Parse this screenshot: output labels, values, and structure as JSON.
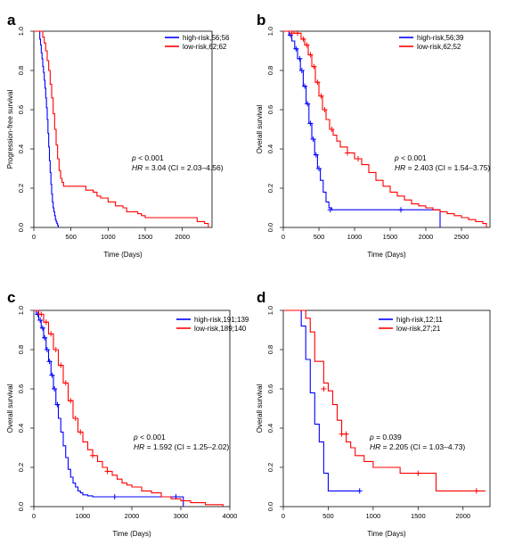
{
  "chart_data": [
    {
      "type": "line",
      "panel": "a",
      "xlabel": "Time (Days)",
      "ylabel": "Progression-free survival",
      "xlim": [
        0,
        2400
      ],
      "ylim": [
        0,
        1
      ],
      "xticks": [
        "0",
        "500",
        "1000",
        "1500",
        "2000"
      ],
      "yticks": [
        "0.0",
        "0.2",
        "0.4",
        "0.6",
        "0.8",
        "1.0"
      ],
      "grid": false,
      "legend_position": "top-right",
      "colors": {
        "high": "#0000ff",
        "low": "#ff0000"
      },
      "annotation": {
        "p_label": "p",
        "p_text": " < 0.001",
        "hr_label": "HR",
        "hr_text": " = 3.04  (CI = 2.03–4.56)"
      },
      "series": [
        {
          "name": "high-risk,56;56",
          "color": "#0000ff",
          "x": [
            0,
            70,
            80,
            90,
            100,
            110,
            120,
            130,
            140,
            150,
            160,
            170,
            180,
            190,
            200,
            210,
            220,
            230,
            240,
            250,
            260,
            270,
            280,
            290,
            300,
            310,
            320,
            330
          ],
          "y": [
            1,
            1,
            0.96,
            0.93,
            0.89,
            0.86,
            0.82,
            0.79,
            0.75,
            0.71,
            0.66,
            0.61,
            0.55,
            0.48,
            0.41,
            0.34,
            0.28,
            0.22,
            0.17,
            0.13,
            0.1,
            0.08,
            0.06,
            0.04,
            0.03,
            0.02,
            0.01,
            0.0
          ],
          "censored": []
        },
        {
          "name": "low-risk,62;62",
          "color": "#ff0000",
          "x": [
            0,
            110,
            120,
            140,
            160,
            180,
            200,
            220,
            240,
            260,
            280,
            300,
            320,
            340,
            360,
            380,
            400,
            650,
            700,
            800,
            850,
            900,
            1000,
            1100,
            1200,
            1250,
            1400,
            1450,
            1500,
            1700,
            2200,
            2300,
            2350
          ],
          "y": [
            1,
            1,
            0.97,
            0.94,
            0.9,
            0.85,
            0.8,
            0.73,
            0.66,
            0.58,
            0.5,
            0.42,
            0.35,
            0.29,
            0.25,
            0.23,
            0.21,
            0.21,
            0.19,
            0.18,
            0.16,
            0.15,
            0.13,
            0.11,
            0.1,
            0.08,
            0.07,
            0.06,
            0.05,
            0.05,
            0.03,
            0.02,
            0.0
          ],
          "censored": []
        }
      ]
    },
    {
      "type": "line",
      "panel": "b",
      "xlabel": "Time (Days)",
      "ylabel": "Overall survival",
      "xlim": [
        0,
        2900
      ],
      "ylim": [
        0,
        1
      ],
      "xticks": [
        "0",
        "500",
        "1000",
        "1500",
        "2000",
        "2500"
      ],
      "yticks": [
        "0.0",
        "0.2",
        "0.4",
        "0.6",
        "0.8",
        "1.0"
      ],
      "grid": false,
      "legend_position": "top-right",
      "colors": {
        "high": "#0000ff",
        "low": "#ff0000"
      },
      "annotation": {
        "p_label": "p",
        "p_text": " < 0.001",
        "hr_label": "HR",
        "hr_text": " = 2.403  (CI = 1.54–3.75)"
      },
      "series": [
        {
          "name": "high-risk,56;39",
          "color": "#0000ff",
          "x": [
            0,
            80,
            120,
            160,
            200,
            240,
            280,
            320,
            360,
            400,
            440,
            480,
            520,
            560,
            600,
            640,
            680,
            2200,
            2200
          ],
          "y": [
            1,
            0.98,
            0.95,
            0.91,
            0.86,
            0.8,
            0.72,
            0.63,
            0.53,
            0.45,
            0.37,
            0.3,
            0.24,
            0.18,
            0.13,
            0.1,
            0.09,
            0.09,
            0.0
          ],
          "censored": [
            [
              100,
              0.98
            ],
            [
              180,
              0.91
            ],
            [
              230,
              0.86
            ],
            [
              260,
              0.8
            ],
            [
              300,
              0.72
            ],
            [
              340,
              0.63
            ],
            [
              380,
              0.53
            ],
            [
              420,
              0.45
            ],
            [
              460,
              0.37
            ],
            [
              500,
              0.3
            ],
            [
              660,
              0.09
            ],
            [
              1650,
              0.09
            ]
          ]
        },
        {
          "name": "low-risk,62;52",
          "color": "#ff0000",
          "x": [
            0,
            150,
            250,
            300,
            350,
            400,
            450,
            500,
            550,
            600,
            650,
            700,
            750,
            800,
            900,
            1000,
            1100,
            1200,
            1300,
            1400,
            1500,
            1600,
            1700,
            1800,
            1900,
            2000,
            2100,
            2200,
            2300,
            2400,
            2500,
            2600,
            2700,
            2800,
            2850
          ],
          "y": [
            1,
            0.99,
            0.96,
            0.93,
            0.88,
            0.82,
            0.74,
            0.67,
            0.6,
            0.55,
            0.5,
            0.47,
            0.44,
            0.41,
            0.38,
            0.35,
            0.32,
            0.28,
            0.24,
            0.21,
            0.18,
            0.16,
            0.14,
            0.12,
            0.11,
            0.1,
            0.09,
            0.08,
            0.07,
            0.06,
            0.05,
            0.04,
            0.03,
            0.02,
            0.0
          ],
          "censored": [
            [
              120,
              0.99
            ],
            [
              200,
              0.99
            ],
            [
              280,
              0.96
            ],
            [
              330,
              0.93
            ],
            [
              380,
              0.88
            ],
            [
              430,
              0.82
            ],
            [
              480,
              0.74
            ],
            [
              530,
              0.67
            ],
            [
              580,
              0.6
            ],
            [
              680,
              0.5
            ],
            [
              900,
              0.38
            ],
            [
              1050,
              0.35
            ]
          ]
        }
      ]
    },
    {
      "type": "line",
      "panel": "c",
      "xlabel": "Time (Days)",
      "ylabel": "Overall survival",
      "xlim": [
        0,
        4000
      ],
      "ylim": [
        0,
        1
      ],
      "xticks": [
        "0",
        "1000",
        "2000",
        "3000",
        "4000"
      ],
      "yticks": [
        "0.0",
        "0.2",
        "0.4",
        "0.6",
        "0.8",
        "1.0"
      ],
      "grid": false,
      "legend_position": "top-right",
      "colors": {
        "high": "#0000ff",
        "low": "#ff0000"
      },
      "annotation": {
        "p_label": "p",
        "p_text": " < 0.001",
        "hr_label": "HR",
        "hr_text": " = 1.592  (CI = 1.25–2.02)"
      },
      "series": [
        {
          "name": "high-risk,191;139",
          "color": "#0000ff",
          "x": [
            0,
            50,
            100,
            150,
            200,
            250,
            300,
            350,
            400,
            450,
            500,
            550,
            600,
            650,
            700,
            750,
            800,
            850,
            900,
            950,
            1000,
            1100,
            1200,
            1300,
            1500,
            2000,
            2500,
            3000,
            3050
          ],
          "y": [
            1,
            0.98,
            0.95,
            0.91,
            0.86,
            0.8,
            0.74,
            0.67,
            0.6,
            0.52,
            0.45,
            0.38,
            0.31,
            0.25,
            0.19,
            0.15,
            0.12,
            0.1,
            0.08,
            0.07,
            0.06,
            0.055,
            0.05,
            0.05,
            0.05,
            0.05,
            0.05,
            0.05,
            0.0
          ],
          "censored": [
            [
              80,
              0.98
            ],
            [
              130,
              0.95
            ],
            [
              180,
              0.91
            ],
            [
              220,
              0.86
            ],
            [
              270,
              0.8
            ],
            [
              320,
              0.74
            ],
            [
              370,
              0.67
            ],
            [
              420,
              0.6
            ],
            [
              480,
              0.52
            ],
            [
              1650,
              0.05
            ],
            [
              2900,
              0.05
            ]
          ]
        },
        {
          "name": "low-risk,189;140",
          "color": "#ff0000",
          "x": [
            0,
            100,
            200,
            300,
            400,
            500,
            600,
            700,
            800,
            900,
            1000,
            1100,
            1200,
            1300,
            1400,
            1500,
            1600,
            1700,
            1800,
            1900,
            2000,
            2200,
            2400,
            2600,
            2800,
            3000,
            3200,
            3500,
            3850,
            3860
          ],
          "y": [
            1,
            0.98,
            0.94,
            0.88,
            0.8,
            0.72,
            0.63,
            0.54,
            0.45,
            0.38,
            0.33,
            0.29,
            0.26,
            0.23,
            0.2,
            0.18,
            0.16,
            0.14,
            0.12,
            0.11,
            0.1,
            0.08,
            0.07,
            0.05,
            0.04,
            0.03,
            0.02,
            0.01,
            0.01,
            0.0
          ],
          "censored": [
            [
              150,
              0.98
            ],
            [
              250,
              0.94
            ],
            [
              350,
              0.88
            ],
            [
              450,
              0.8
            ],
            [
              550,
              0.72
            ],
            [
              650,
              0.63
            ],
            [
              750,
              0.54
            ],
            [
              850,
              0.45
            ],
            [
              950,
              0.38
            ],
            [
              1200,
              0.26
            ],
            [
              1500,
              0.18
            ]
          ]
        }
      ]
    },
    {
      "type": "line",
      "panel": "d",
      "xlabel": "Time (Days)",
      "ylabel": "Overall survival",
      "xlim": [
        0,
        2300
      ],
      "ylim": [
        0,
        1
      ],
      "xticks": [
        "0",
        "500",
        "1000",
        "1500",
        "2000"
      ],
      "yticks": [
        "0.0",
        "0.2",
        "0.4",
        "0.6",
        "0.8",
        "1.0"
      ],
      "grid": false,
      "legend_position": "top-right",
      "colors": {
        "high": "#0000ff",
        "low": "#ff0000"
      },
      "annotation": {
        "p_label": "p",
        "p_text": " = 0.039",
        "hr_label": "HR",
        "hr_text": " = 2.205  (CI = 1.03–4.73)"
      },
      "series": [
        {
          "name": "high-risk,12;11",
          "color": "#0000ff",
          "x": [
            0,
            150,
            200,
            250,
            300,
            350,
            400,
            450,
            500,
            850
          ],
          "y": [
            1,
            1,
            0.92,
            0.75,
            0.58,
            0.42,
            0.33,
            0.17,
            0.08,
            0.08
          ],
          "censored": [
            [
              850,
              0.08
            ]
          ]
        },
        {
          "name": "low-risk,27;21",
          "color": "#ff0000",
          "x": [
            0,
            150,
            250,
            300,
            350,
            450,
            500,
            550,
            600,
            650,
            700,
            750,
            800,
            900,
            1000,
            1300,
            1700,
            2250
          ],
          "y": [
            1,
            1,
            0.96,
            0.89,
            0.74,
            0.63,
            0.59,
            0.52,
            0.44,
            0.37,
            0.33,
            0.3,
            0.26,
            0.23,
            0.2,
            0.17,
            0.08,
            0.08
          ],
          "censored": [
            [
              450,
              0.6
            ],
            [
              650,
              0.37
            ],
            [
              700,
              0.37
            ],
            [
              1500,
              0.17
            ],
            [
              2150,
              0.08
            ]
          ]
        }
      ]
    }
  ]
}
